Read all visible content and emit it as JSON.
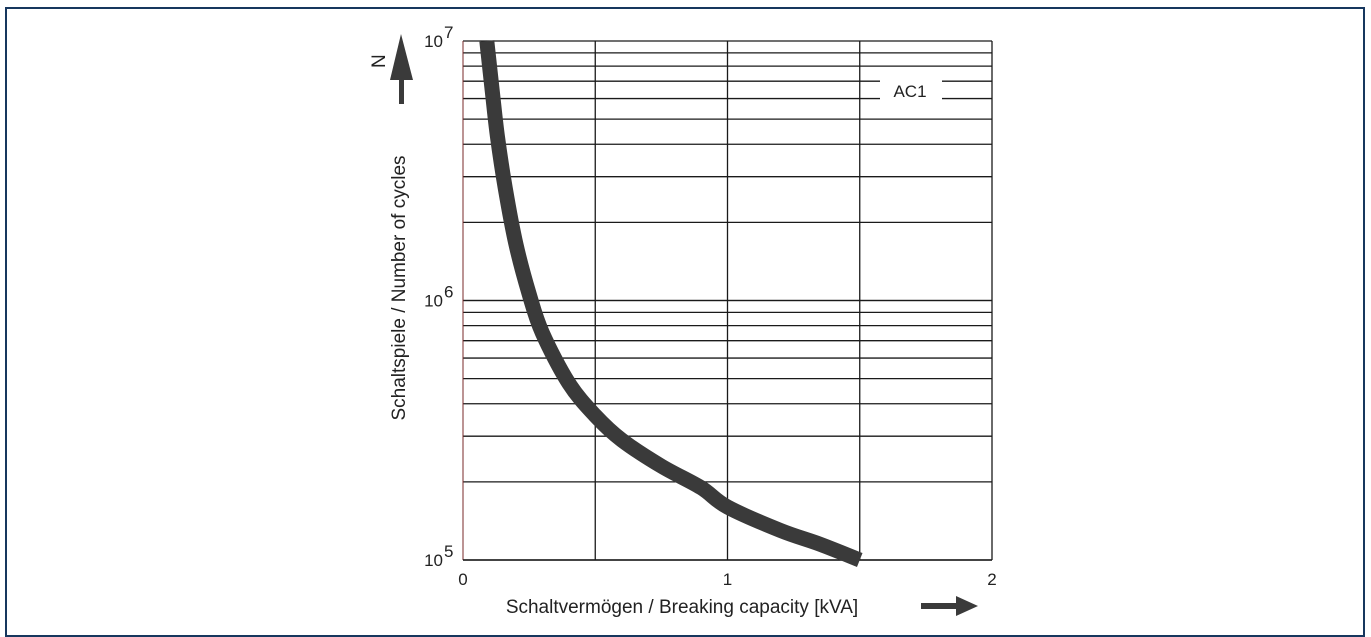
{
  "chart_data": {
    "type": "line",
    "series_label": "AC1",
    "xlabel": "Schaltvermögen / Breaking capacity [kVA]",
    "ylabel": "Schaltspiele / Number of cycles",
    "y_arrow_label": "N",
    "xlim": [
      0,
      2
    ],
    "ylim": [
      100000,
      10000000
    ],
    "y_scale": "log",
    "x_ticks": [
      "0",
      "1",
      "2"
    ],
    "y_ticks": [
      {
        "base": "10",
        "exp": "5",
        "value": 100000
      },
      {
        "base": "10",
        "exp": "6",
        "value": 1000000
      },
      {
        "base": "10",
        "exp": "7",
        "value": 10000000
      }
    ],
    "grid": true,
    "series": [
      {
        "color": "#3a3a3a",
        "points": [
          [
            0.09,
            10000000
          ],
          [
            0.11,
            6500000
          ],
          [
            0.13,
            4300000
          ],
          [
            0.16,
            2700000
          ],
          [
            0.2,
            1650000
          ],
          [
            0.25,
            1060000
          ],
          [
            0.3,
            750000
          ],
          [
            0.4,
            480000
          ],
          [
            0.5,
            360000
          ],
          [
            0.6,
            290000
          ],
          [
            0.75,
            230000
          ],
          [
            0.9,
            190000
          ],
          [
            1.0,
            160000
          ],
          [
            1.2,
            130000
          ],
          [
            1.35,
            115000
          ],
          [
            1.5,
            100000
          ]
        ]
      }
    ]
  }
}
